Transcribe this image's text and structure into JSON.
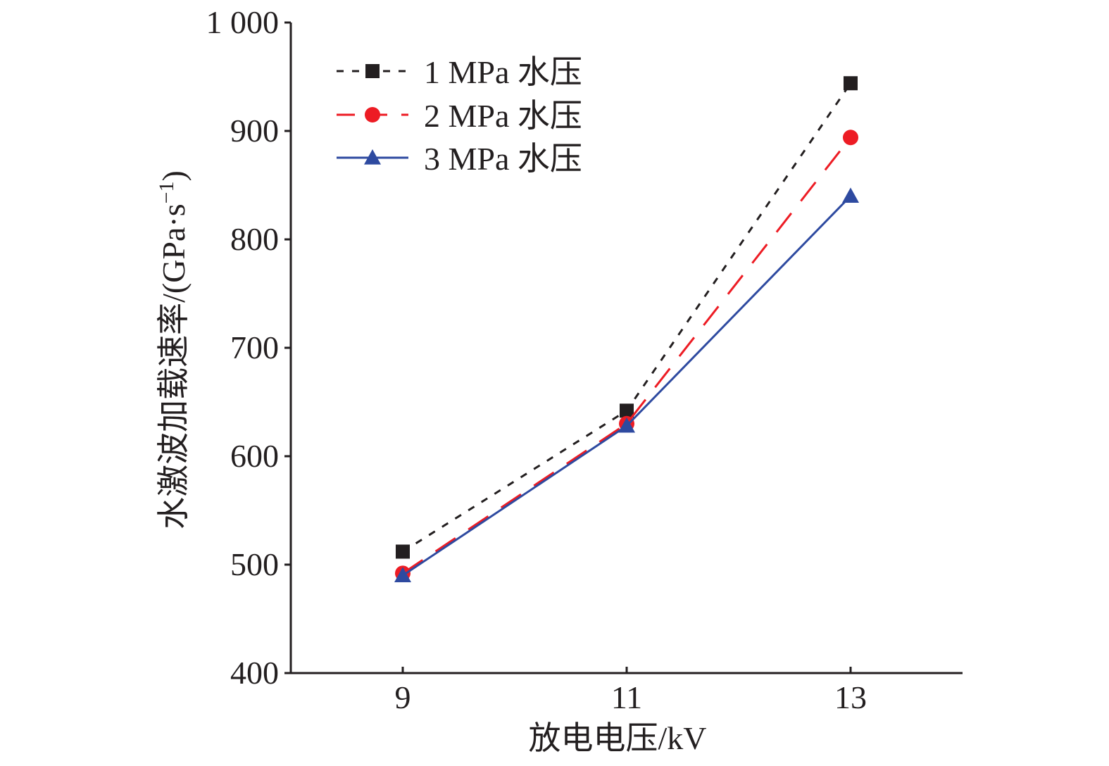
{
  "chart_data": {
    "type": "line",
    "title": "",
    "xlabel": "放电电压/kV",
    "ylabel": "水激波加载速率/(GPa·s",
    "ylabel_exponent": "−1",
    "ylabel_close": ")",
    "x": [
      9,
      11,
      13
    ],
    "x_tick_labels": [
      "9",
      "11",
      "13"
    ],
    "xlim": [
      8,
      14
    ],
    "ylim": [
      400,
      1000
    ],
    "y_ticks": [
      400,
      500,
      600,
      700,
      800,
      900,
      1000
    ],
    "y_tick_labels": [
      "400",
      "500",
      "600",
      "700",
      "800",
      "900",
      "1 000"
    ],
    "grid": false,
    "legend_position": "top-left",
    "series": [
      {
        "name": "1 MPa 水压",
        "values": [
          512,
          642,
          944
        ],
        "color": "#231f20",
        "marker": "square",
        "line_style": "dotted"
      },
      {
        "name": "2 MPa 水压",
        "values": [
          492,
          630,
          894
        ],
        "color": "#ed1c24",
        "marker": "circle",
        "line_style": "dashed"
      },
      {
        "name": "3 MPa 水压",
        "values": [
          490,
          628,
          840
        ],
        "color": "#2e4aa0",
        "marker": "triangle",
        "line_style": "solid"
      }
    ]
  }
}
